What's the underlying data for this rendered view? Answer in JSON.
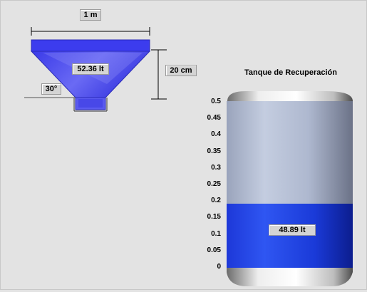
{
  "hopper": {
    "width_label": "1 m",
    "height_label": "20 cm",
    "angle_label": "30°",
    "volume_label": "52.36 lt",
    "fill_color": "#4c4cf0"
  },
  "tank": {
    "title": "Tanque de Recuperación",
    "volume_label": "48.89 lt",
    "level": 0.2,
    "scale_max": 0.5,
    "scale_ticks": [
      "0.5",
      "0.45",
      "0.4",
      "0.35",
      "0.3",
      "0.25",
      "0.2",
      "0.15",
      "0.1",
      "0.05",
      "0"
    ],
    "liquid_color": "#1e3de0",
    "empty_color": "#b0bbd3"
  }
}
